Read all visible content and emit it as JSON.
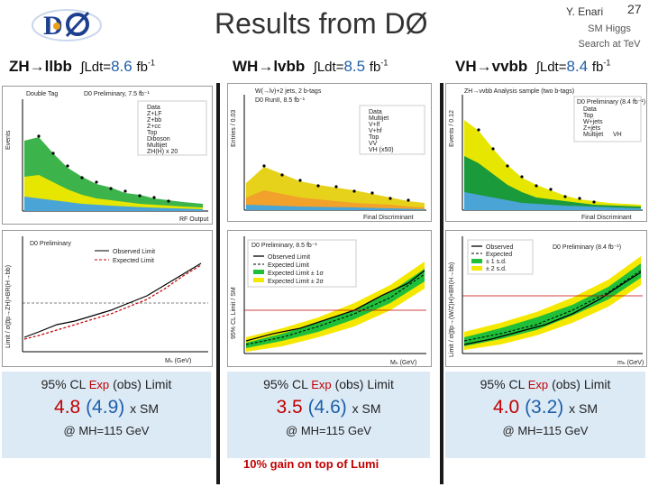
{
  "header": {
    "title": "Results from DØ",
    "author": "Y. Enari",
    "page_number": "27",
    "affiliation": [
      "SM Higgs",
      "Search at TeV"
    ]
  },
  "columns": [
    {
      "process": "ZH→llbb",
      "lumi_label": "∫Ldt=",
      "lumi_value": "8.6",
      "lumi_unit": "fb",
      "lumi_exp": "-1",
      "result": {
        "line1_a": "95% CL",
        "line1_exp": "Exp",
        "line1_obs": "(obs)",
        "line1_b": "Limit",
        "expected": "4.8",
        "observed": "(4.9)",
        "unit": "x SM",
        "mass": "@ MH=115 GeV"
      },
      "upper_plot": {
        "title": "Double Tag",
        "label": "D0 Preliminary, 7.5 fb⁻¹",
        "ylabel": "Events",
        "xlabel": "RF Output",
        "legend": [
          "Data",
          "Z+LF",
          "Z+bb",
          "Z+cc",
          "Top",
          "Diboson",
          "Multijet",
          "ZH(H) x 20"
        ]
      },
      "lower_plot": {
        "title": "D0 Preliminary",
        "ylabel": "Limit / σ(p̅p→ZH)×BR(H→bb)",
        "xlabel": "Mₕ (GeV)",
        "legend": [
          "Observed Limit",
          "Expected Limit"
        ]
      }
    },
    {
      "process": "WH→lvbb",
      "lumi_label": "∫Ldt=",
      "lumi_value": "8.5",
      "lumi_unit": "fb",
      "lumi_exp": "-1",
      "result": {
        "line1_a": "95% CL",
        "line1_exp": "Exp",
        "line1_obs": "(obs)",
        "line1_b": "Limit",
        "expected": "3.5",
        "observed": "(4.6)",
        "unit": "x SM",
        "mass": "@ MH=115 GeV"
      },
      "upper_plot": {
        "title": "W(→lν)+2 jets, 2 b-tags",
        "label": "D0 RunII, 8.5 fb⁻¹",
        "ylabel": "Entries / 0.03",
        "xlabel": "Final Discriminant",
        "legend": [
          "Data",
          "Multijet",
          "V+lf",
          "V+hf",
          "Top",
          "VV",
          "VH (x50)"
        ]
      },
      "lower_plot": {
        "title": "D0 Preliminary, 8.5 fb⁻¹",
        "ylabel": "95% CL Limit / SM",
        "xlabel": "Mₕ (GeV)",
        "legend": [
          "Observed Limit",
          "Expected Limit",
          "Expected Limit ± 1σ",
          "Expected Limit ± 2σ"
        ]
      }
    },
    {
      "process": "VH→vvbb",
      "lumi_label": "∫Ldt=",
      "lumi_value": "8.4",
      "lumi_unit": "fb",
      "lumi_exp": "-1",
      "result": {
        "line1_a": "95% CL",
        "line1_exp": "Exp",
        "line1_obs": "(obs)",
        "line1_b": "Limit",
        "expected": "4.0",
        "observed": "(3.2)",
        "unit": "x SM",
        "mass": "@ MH=115 GeV"
      },
      "upper_plot": {
        "title": "ZH→ννbb Analysis sample (two b-tags)",
        "label": "D0 Preliminary (8.4 fb⁻¹)",
        "ylabel": "Events / 0.12",
        "xlabel": "Final Discriminant",
        "legend": [
          "Data",
          "Top",
          "W+jets",
          "Z+jets",
          "Multijet",
          "VH"
        ]
      },
      "lower_plot": {
        "title": "D0 Preliminary (8.4 fb⁻¹)",
        "ylabel": "Limit / σ(p̅p→(W/Z)H)×BR(H→bb)",
        "xlabel": "mₕ (GeV)",
        "legend": [
          "Observed",
          "Expected",
          "± 1 s.d.",
          "± 2 s.d."
        ]
      }
    }
  ],
  "footer": {
    "gain_text": "10% gain on top of Lumi"
  },
  "colors": {
    "accent_red": "#c00000",
    "accent_blue": "#1e5fa8",
    "box_bg": "#dceaf6"
  }
}
